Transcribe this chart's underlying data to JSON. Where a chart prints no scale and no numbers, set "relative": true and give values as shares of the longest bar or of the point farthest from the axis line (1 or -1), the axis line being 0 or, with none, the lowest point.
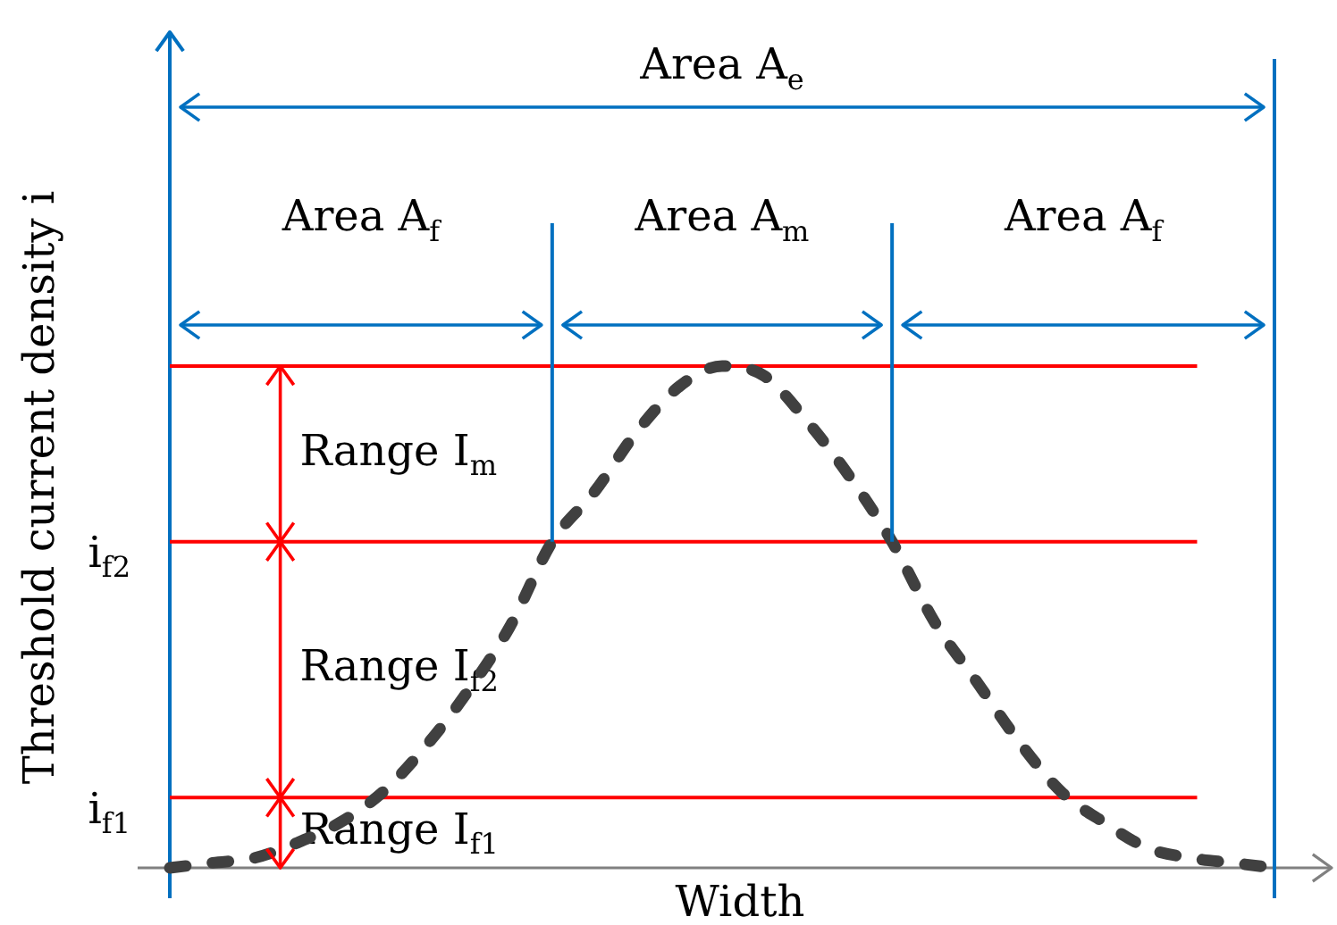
{
  "chart_data": {
    "type": "line",
    "xlabel": "Width",
    "ylabel": "Threshold current density i",
    "categories": [
      null,
      null,
      null,
      null,
      null,
      null,
      null,
      null,
      null,
      null,
      null,
      null,
      null,
      null,
      null,
      null,
      null,
      null,
      null,
      null,
      null,
      null,
      null,
      null,
      null,
      null,
      null
    ],
    "series": [
      {
        "color": "#404040",
        "values": [
          0,
          0.01,
          0.02,
          0.05,
          0.09,
          0.15,
          0.24,
          0.35,
          0.48,
          0.65,
          0.75,
          0.87,
          0.96,
          1,
          0.98,
          0.89,
          0.78,
          0.65,
          0.49,
          0.37,
          0.25,
          0.15,
          0.09,
          0.04,
          0.02,
          0.01,
          0
        ]
      }
    ],
    "relative": true,
    "line_style": "dashed",
    "ref_lines": [
      {
        "axis": "y",
        "value": 1,
        "color": "#ff0000"
      },
      {
        "axis": "y",
        "value": 0.65,
        "label": "i$_{f2}$",
        "color": "#ff0000"
      },
      {
        "axis": "y",
        "value": 0.14,
        "label": "i$_{f1}$",
        "color": "#ff0000"
      }
    ],
    "annotations": [
      "Area A$_{e}$",
      "Area A$_{f}$",
      "Area A$_{m}$",
      "Area A$_{f}$",
      "Range I$_{m}$",
      "Range I$_{f2}$",
      "Range I$_{f1}$"
    ]
  }
}
